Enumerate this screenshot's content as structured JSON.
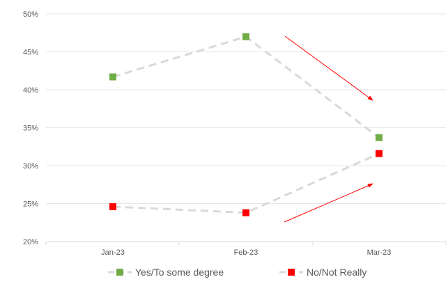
{
  "chart_data": {
    "type": "line",
    "categories": [
      "Jan-23",
      "Feb-23",
      "Mar-23"
    ],
    "series": [
      {
        "name": "Yes/To some degree",
        "values": [
          41.7,
          47.0,
          33.7
        ],
        "color": "#70ad47"
      },
      {
        "name": "No/Not Really",
        "values": [
          24.6,
          23.8,
          31.6
        ],
        "color": "#ff0000"
      }
    ],
    "line_color": "#d9d9d9",
    "line_style": "dashed",
    "yticks": [
      "20%",
      "25%",
      "30%",
      "35%",
      "40%",
      "45%",
      "50%"
    ],
    "ylim": [
      20,
      50
    ],
    "grid": true,
    "legend_position": "bottom",
    "annotations": [
      {
        "type": "arrow",
        "color": "#ff0000",
        "direction": "down-right"
      },
      {
        "type": "arrow",
        "color": "#ff0000",
        "direction": "up-right"
      }
    ]
  }
}
